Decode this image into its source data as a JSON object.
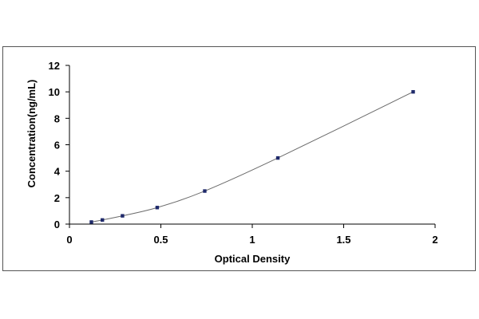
{
  "chart_data": {
    "type": "scatter",
    "title": "",
    "xlabel": "Optical Density",
    "ylabel": "Concentration(ng/mL)",
    "xlim": [
      0,
      2
    ],
    "ylim": [
      0,
      12
    ],
    "x_ticks": [
      "0",
      "0.5",
      "1",
      "1.5",
      "2"
    ],
    "y_ticks": [
      "0",
      "2",
      "4",
      "6",
      "8",
      "10",
      "12"
    ],
    "grid": false,
    "legend": "none",
    "series": [
      {
        "x": [
          0.12,
          0.18,
          0.29,
          0.48,
          0.74,
          1.14,
          1.88
        ],
        "y": [
          0.156,
          0.312,
          0.625,
          1.25,
          2.5,
          5,
          10
        ],
        "marker_color": "#1f2a6b",
        "curve_color": "#6b6b6b",
        "fit_line": true
      }
    ]
  }
}
